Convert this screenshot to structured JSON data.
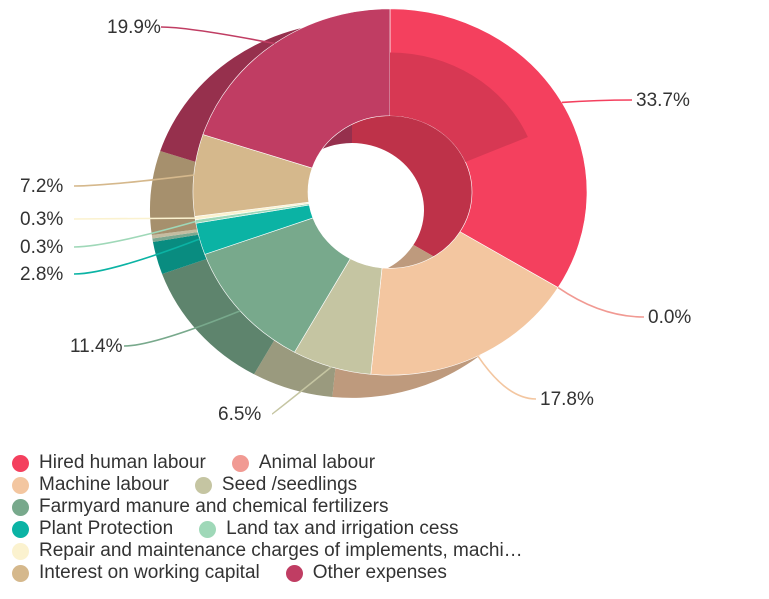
{
  "chart_data": {
    "type": "pie",
    "donut": true,
    "categories": [
      "Hired human labour",
      "Animal labour",
      "Machine labour",
      "Seed /seedlings",
      "Farmyard manure and chemical fertilizers",
      "Plant Protection",
      "Land tax and irrigation cess",
      "Repair and maintenance charges of implements, machi…",
      "Interest on working capital",
      "Other expenses"
    ],
    "values": [
      33.7,
      0.0,
      17.8,
      6.5,
      11.4,
      2.8,
      0.3,
      0.3,
      7.2,
      19.9
    ],
    "data_labels": [
      "33.7%",
      "0.0%",
      "17.8%",
      "6.5%",
      "11.4%",
      "2.8%",
      "0.3%",
      "0.3%",
      "7.2%",
      "19.9%"
    ],
    "colors": [
      "#f4405e",
      "#f19a93",
      "#f3c6a0",
      "#c5c5a2",
      "#78a98c",
      "#0bb3a4",
      "#9fd8b8",
      "#fbf2cf",
      "#d5b88c",
      "#c03d63"
    ],
    "legend_position": "bottom",
    "title": "",
    "xlabel": "",
    "ylabel": ""
  }
}
